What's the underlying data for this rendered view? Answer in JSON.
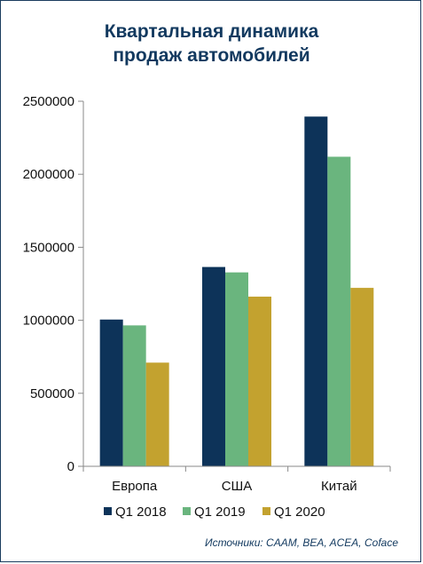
{
  "chart_data": {
    "type": "bar",
    "title": [
      "Квартальная динамика",
      "продаж автомобилей"
    ],
    "categories": [
      "Европа",
      "США",
      "Китай"
    ],
    "series": [
      {
        "name": "Q1 2018",
        "color": "#0d3359",
        "values": [
          1005000,
          1365000,
          2395000
        ]
      },
      {
        "name": "Q1 2019",
        "color": "#6ab57e",
        "values": [
          965000,
          1328000,
          2120000
        ]
      },
      {
        "name": "Q1 2020",
        "color": "#c3a22f",
        "values": [
          710000,
          1162000,
          1222000
        ]
      }
    ],
    "ylim": [
      0,
      2500000
    ],
    "yticks": [
      0,
      500000,
      1000000,
      1500000,
      2000000,
      2500000
    ],
    "ytick_labels": [
      "0",
      "500000",
      "1000000",
      "1500000",
      "2000000",
      "2500000"
    ],
    "grid": false,
    "legend": "bottom"
  },
  "source": "Источники: CAAM, BEA, ACEA, Coface"
}
